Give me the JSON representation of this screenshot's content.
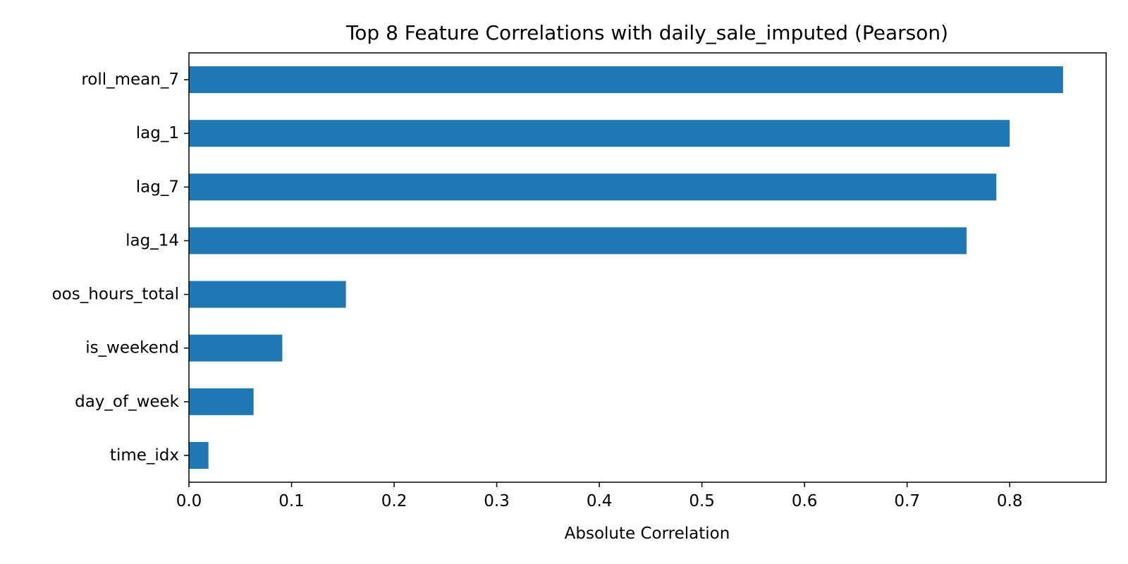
{
  "chart_data": {
    "type": "bar",
    "orientation": "horizontal",
    "title": "Top 8 Feature Correlations with daily_sale_imputed (Pearson)",
    "xlabel": "Absolute Correlation",
    "ylabel": "",
    "categories": [
      "roll_mean_7",
      "lag_1",
      "lag_7",
      "lag_14",
      "oos_hours_total",
      "is_weekend",
      "day_of_week",
      "time_idx"
    ],
    "values": [
      0.852,
      0.8,
      0.787,
      0.758,
      0.153,
      0.091,
      0.063,
      0.019
    ],
    "xlim": [
      0,
      0.894
    ],
    "xticks": [
      0.0,
      0.1,
      0.2,
      0.3,
      0.4,
      0.5,
      0.6,
      0.7,
      0.8
    ],
    "xtick_labels": [
      "0.0",
      "0.1",
      "0.2",
      "0.3",
      "0.4",
      "0.5",
      "0.6",
      "0.7",
      "0.8"
    ],
    "bar_color": "#1f77b4",
    "grid": false,
    "legend": "none"
  }
}
